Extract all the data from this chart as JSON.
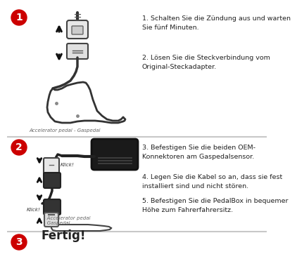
{
  "bg_color": "#ffffff",
  "divider_color": "#c8c8c8",
  "circle_color": "#cc0000",
  "circle_text_color": "#ffffff",
  "step1_circle": "1",
  "step2_circle": "2",
  "step3_circle": "3",
  "step1_text1": "1. Schalten Sie die Zündung aus und warten\nSie fünf Minuten.",
  "step1_text2": "2. Lösen Sie die Steckverbindung vom\nOriginal-Steckadapter.",
  "step1_caption": "Accelerator pedal - Gaspedal",
  "step2_text3": "3. Befestigen Sie die beiden OEM-\nKonnektoren am Gaspedalsensor.",
  "step2_text4": "4. Legen Sie die Kabel so an, dass sie fest\ninstalliert sind und nicht stören.",
  "step2_text5": "5. Befestigen Sie die PedalBox in bequemer\nHöhe zum Fahrerfahrersitz.",
  "step2_caption": "- Accelerator pedal\n- Gaspedal",
  "step3_text": "Fertig!",
  "text_color": "#222222",
  "caption_color": "#666666"
}
